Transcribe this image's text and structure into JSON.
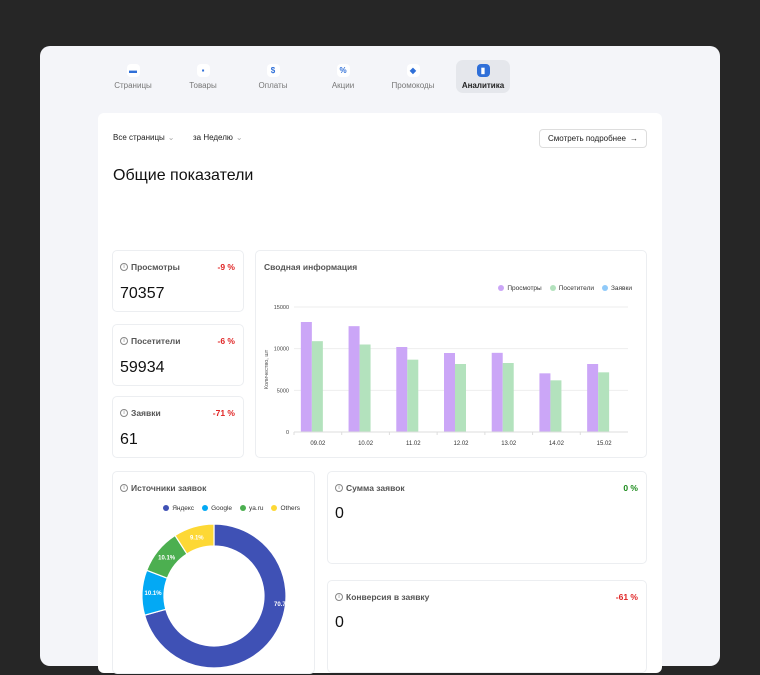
{
  "nav": {
    "tabs": [
      {
        "label": "Страницы",
        "icon": "folder-icon",
        "glyph": "▬"
      },
      {
        "label": "Товары",
        "icon": "box-icon",
        "glyph": "▪"
      },
      {
        "label": "Оплаты",
        "icon": "dollar-icon",
        "glyph": "$"
      },
      {
        "label": "Акции",
        "icon": "percent-icon",
        "glyph": "%"
      },
      {
        "label": "Промокоды",
        "icon": "tag-icon",
        "glyph": "◆"
      },
      {
        "label": "Аналитика",
        "icon": "bar-chart-icon",
        "glyph": "▮",
        "active": true
      }
    ]
  },
  "filters": {
    "pages": "Все страницы",
    "period": "за Неделю",
    "chevron": "⌄"
  },
  "more_button": {
    "label": "Смотреть подробнее",
    "arrow": "→"
  },
  "page_title": "Общие показатели",
  "stats": [
    {
      "title": "Просмотры",
      "delta": "-9 %",
      "value": "70357"
    },
    {
      "title": "Посетители",
      "delta": "-6 %",
      "value": "59934"
    },
    {
      "title": "Заявки",
      "delta": "-71 %",
      "value": "61"
    }
  ],
  "sum_card": {
    "title": "Сумма заявок",
    "delta": "0 %",
    "value": "0"
  },
  "conv_card": {
    "title": "Конверсия в заявку",
    "delta": "-61 %",
    "value": "0"
  },
  "info_glyph": "i",
  "chart_data": [
    {
      "type": "bar",
      "title": "Сводная информация",
      "ylabel": "Количество, шт",
      "ylim": [
        0,
        15000
      ],
      "yticks": [
        0,
        5000,
        10000,
        15000
      ],
      "grid": true,
      "legend": "top-right",
      "categories": [
        "09.02",
        "10.02",
        "11.02",
        "12.02",
        "13.02",
        "14.02",
        "15.02"
      ],
      "series": [
        {
          "name": "Просмотры",
          "color": "#cba6f7",
          "values": [
            13200,
            12700,
            10200,
            9480,
            9500,
            7040,
            8160
          ]
        },
        {
          "name": "Посетители",
          "color": "#b3e2bd",
          "values": [
            10900,
            10500,
            8680,
            8160,
            8280,
            6200,
            7160
          ]
        },
        {
          "name": "Заявки",
          "color": "#90caf9",
          "values": [
            15,
            12,
            10,
            8,
            7,
            4,
            5
          ]
        }
      ]
    },
    {
      "type": "pie",
      "title": "Источники заявок",
      "legend": "top-right",
      "donut": true,
      "slices": [
        {
          "name": "Яндекс",
          "value": 70.7,
          "label": "70.7%",
          "color": "#3f51b5"
        },
        {
          "name": "Google",
          "value": 10.1,
          "label": "10.1%",
          "color": "#03a9f4"
        },
        {
          "name": "ya.ru",
          "value": 10.1,
          "label": "10.1%",
          "color": "#4caf50"
        },
        {
          "name": "Others",
          "value": 9.1,
          "label": "9.1%",
          "color": "#fdd835"
        }
      ]
    }
  ]
}
